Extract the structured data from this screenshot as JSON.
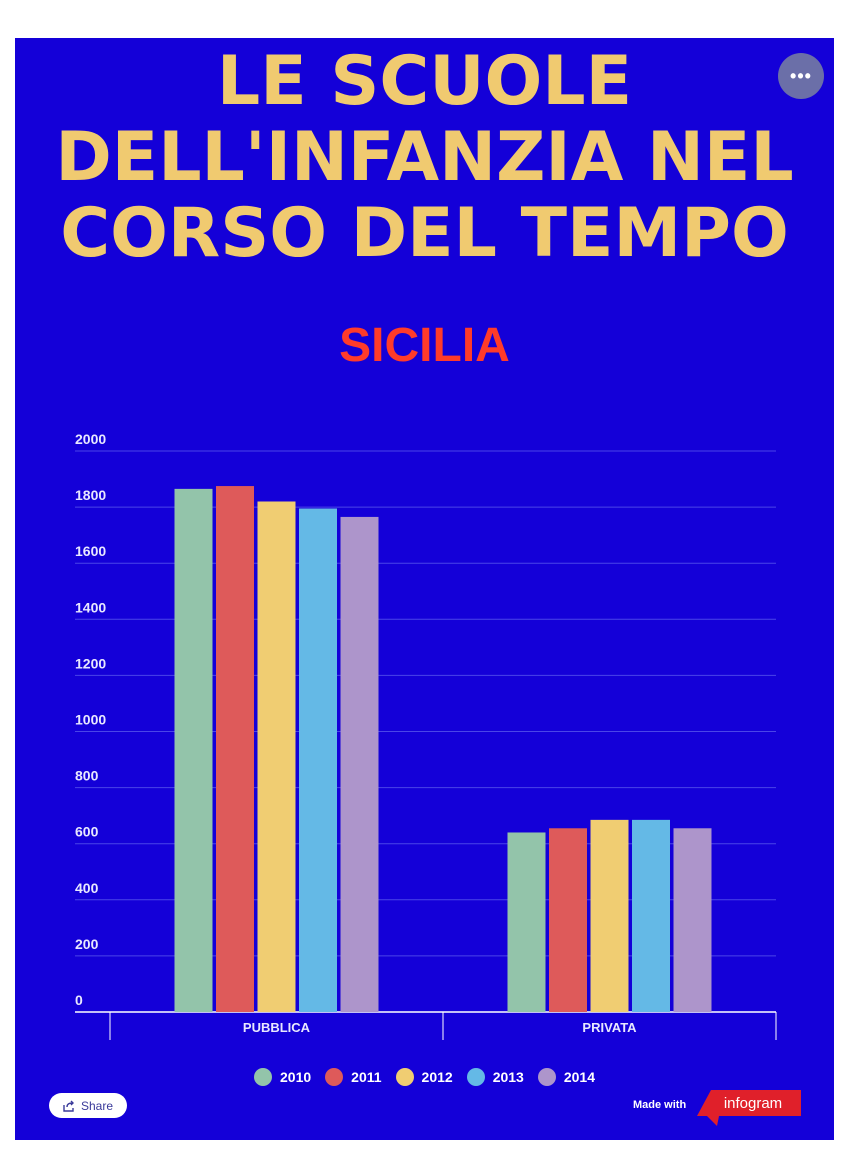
{
  "title_lines": [
    "LE SCUOLE",
    "DELL'INFANZIA NEL",
    "CORSO DEL TEMPO"
  ],
  "subtitle": "SICILIA",
  "more_button_glyph": "•••",
  "share_label": "Share",
  "made_with_label": "Made with",
  "logo_text": "infogram",
  "colors": {
    "background": "#1400d8",
    "title": "#f0ca70",
    "subtitle": "#ff3b2a",
    "logo_red": "#e0202a"
  },
  "chart_data": {
    "type": "bar",
    "categories": [
      "PUBBLICA",
      "PRIVATA"
    ],
    "series": [
      {
        "name": "2010",
        "color": "#93c4aa",
        "values": [
          1865,
          640
        ]
      },
      {
        "name": "2011",
        "color": "#de5a5a",
        "values": [
          1875,
          655
        ]
      },
      {
        "name": "2012",
        "color": "#f0cd72",
        "values": [
          1820,
          685
        ]
      },
      {
        "name": "2013",
        "color": "#64b9e6",
        "values": [
          1795,
          685
        ]
      },
      {
        "name": "2014",
        "color": "#ad95cb",
        "values": [
          1765,
          655
        ]
      }
    ],
    "ylim": [
      0,
      2000
    ],
    "yticks": [
      "0",
      "200",
      "400",
      "600",
      "800",
      "1000",
      "1200",
      "1400",
      "1600",
      "1800",
      "2000"
    ],
    "grid": true,
    "legend_position": "bottom"
  }
}
